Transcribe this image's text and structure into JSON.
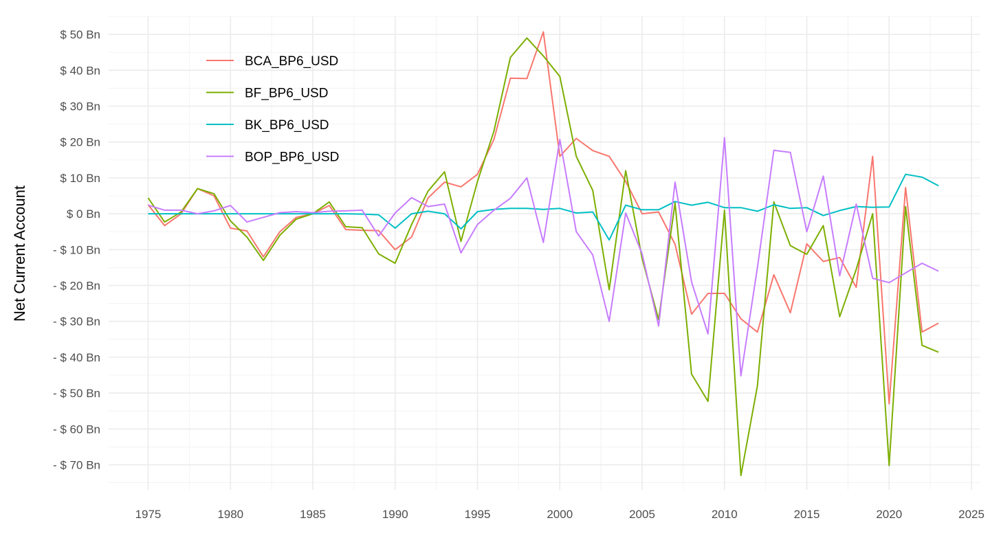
{
  "chart_data": {
    "type": "line",
    "title": "",
    "xlabel": "",
    "ylabel": "Net Current Account",
    "xlim": [
      1972.6,
      2025.5
    ],
    "ylim": [
      -77,
      55
    ],
    "x_ticks": [
      1975,
      1980,
      1985,
      1990,
      1995,
      2000,
      2005,
      2010,
      2015,
      2020,
      2025
    ],
    "x_tick_labels": [
      "1975",
      "1980",
      "1985",
      "1990",
      "1995",
      "2000",
      "2005",
      "2010",
      "2015",
      "2020",
      "2025"
    ],
    "y_ticks": [
      50,
      40,
      30,
      20,
      10,
      0,
      -10,
      -20,
      -30,
      -40,
      -50,
      -60,
      -70
    ],
    "y_tick_labels": [
      "$ 50 Bn",
      "$ 40 Bn",
      "$ 30 Bn",
      "$ 20 Bn",
      "$ 10 Bn",
      "$ 0 Bn",
      "- $ 10 Bn",
      "- $ 20 Bn",
      "- $ 30 Bn",
      "- $ 40 Bn",
      "- $ 50 Bn",
      "- $ 60 Bn",
      "- $ 70 Bn"
    ],
    "grid": true,
    "legend_position": "top-left",
    "x": [
      1975,
      1976,
      1977,
      1978,
      1979,
      1980,
      1981,
      1982,
      1983,
      1984,
      1985,
      1986,
      1987,
      1988,
      1989,
      1990,
      1991,
      1992,
      1993,
      1994,
      1995,
      1996,
      1997,
      1998,
      1999,
      2000,
      2001,
      2002,
      2003,
      2004,
      2005,
      2006,
      2007,
      2008,
      2009,
      2010,
      2011,
      2012,
      2013,
      2014,
      2015,
      2016,
      2017,
      2018,
      2019,
      2020,
      2021,
      2022,
      2023
    ],
    "series": [
      {
        "name": "BCA_BP6_USD",
        "color": "#F8766D",
        "values": [
          2.5,
          -3.3,
          0,
          7,
          5,
          -4,
          -4.8,
          -12,
          -5,
          -1,
          0,
          2.3,
          -4.4,
          -4.6,
          -4.7,
          -10,
          -6.5,
          4.4,
          8.8,
          7.5,
          11,
          20.7,
          37.8,
          37.7,
          50.7,
          16,
          21,
          17.6,
          16,
          9,
          0,
          0.5,
          -8.5,
          -28,
          -22.2,
          -22.2,
          -29.3,
          -33,
          -17,
          -27.6,
          -8.4,
          -13.3,
          -12.2,
          -20.5,
          16,
          -53,
          7.3,
          -33,
          -30.5
        ]
      },
      {
        "name": "BF_BP6_USD",
        "color": "#7CAE00",
        "values": [
          4.4,
          -2.3,
          0.5,
          7,
          5.6,
          -2,
          -6.5,
          -13,
          -6,
          -1.5,
          0,
          3.3,
          -3.6,
          -3.9,
          -11.2,
          -13.8,
          -3,
          6.3,
          11.7,
          -7.7,
          9,
          23,
          43.6,
          49,
          44,
          38.3,
          16,
          6.5,
          -21.2,
          12,
          -12.5,
          -29.5,
          3,
          -44.7,
          -52.3,
          1,
          -73,
          -48,
          3.3,
          -8.9,
          -11.3,
          -3.3,
          -28.7,
          -15.5,
          0,
          -70.2,
          2,
          -36.7,
          -38.6
        ]
      },
      {
        "name": "BK_BP6_USD",
        "color": "#00BFC4",
        "values": [
          0,
          0,
          0,
          0,
          0,
          0,
          0,
          0,
          0,
          0,
          0,
          0,
          0,
          -0.1,
          -0.3,
          -4,
          0,
          0.7,
          0,
          -4.2,
          0.6,
          1.2,
          1.5,
          1.5,
          1.2,
          1.5,
          0.2,
          0.5,
          -7.3,
          2.4,
          1.1,
          1.1,
          3.4,
          2.4,
          3.2,
          1.7,
          1.7,
          0.7,
          2.5,
          1.5,
          1.7,
          -0.5,
          0.9,
          2,
          1.8,
          1.9,
          11,
          10.2,
          7.8
        ]
      },
      {
        "name": "BOP_BP6_USD",
        "color": "#C77CFF",
        "values": [
          2.4,
          1,
          1,
          0,
          0.8,
          2.3,
          -2.3,
          -1,
          0.3,
          0.6,
          0.3,
          0.7,
          0.8,
          1,
          -6.2,
          0.2,
          4.5,
          2,
          2.7,
          -10.9,
          -3,
          1,
          4.3,
          10,
          -8,
          20.7,
          -5,
          -11.5,
          -30,
          0.2,
          -11.2,
          -31.3,
          8.8,
          -19,
          -33.5,
          21.2,
          -45.2,
          -15,
          17.7,
          17.1,
          -5,
          10.5,
          -17.3,
          2.7,
          -18,
          -19.2,
          -16.5,
          -13.8,
          -16
        ]
      }
    ]
  }
}
